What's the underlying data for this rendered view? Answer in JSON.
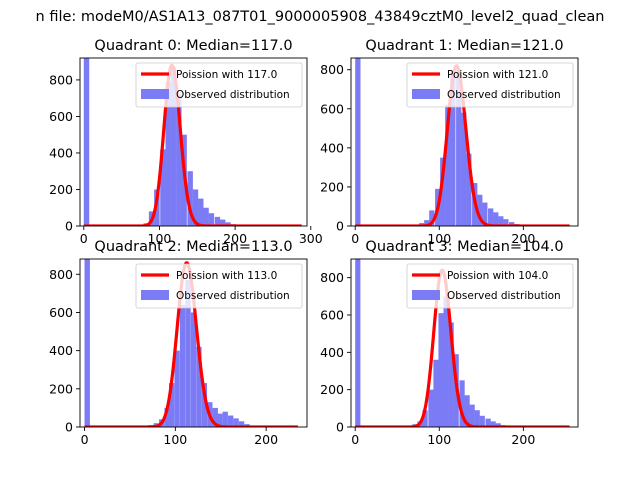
{
  "suptitle": "n file: modeM0/AS1A13_087T01_9000005908_43849cztM0_level2_quad_clean",
  "colors": {
    "bar": "#7b7bf5",
    "curve": "#ff0000",
    "axis": "#000000"
  },
  "chart_data": [
    {
      "type": "bar",
      "title": "Quadrant 0: Median=117.0",
      "xlim": [
        -5,
        295
      ],
      "ylim": [
        0,
        920
      ],
      "xticks": [
        0,
        100,
        200,
        300
      ],
      "yticks": [
        0,
        200,
        400,
        600,
        800
      ],
      "legend": {
        "placement": "top-right",
        "entries": [
          "Poission with 117.0",
          "Observed distribution"
        ]
      },
      "series": [
        {
          "name": "Observed distribution",
          "kind": "histogram",
          "bin_width": 7.2,
          "bins": [
            [
              0,
              920
            ],
            [
              72,
              5
            ],
            [
              79,
              15
            ],
            [
              86,
              80
            ],
            [
              93,
              200
            ],
            [
              101,
              420
            ],
            [
              108,
              790
            ],
            [
              115,
              870
            ],
            [
              122,
              720
            ],
            [
              129,
              500
            ],
            [
              137,
              300
            ],
            [
              144,
              200
            ],
            [
              151,
              150
            ],
            [
              158,
              100
            ],
            [
              165,
              70
            ],
            [
              173,
              50
            ],
            [
              180,
              35
            ],
            [
              187,
              20
            ],
            [
              194,
              10
            ]
          ]
        },
        {
          "name": "Poission with 117.0",
          "kind": "poisson",
          "lambda": 117.0,
          "peak": 880,
          "x": [
            0,
            288
          ]
        }
      ]
    },
    {
      "type": "bar",
      "title": "Quadrant 1: Median=121.0",
      "xlim": [
        -5,
        265
      ],
      "ylim": [
        0,
        860
      ],
      "xticks": [
        0,
        100,
        200
      ],
      "yticks": [
        0,
        200,
        400,
        600,
        800
      ],
      "legend": {
        "placement": "top-right",
        "entries": [
          "Poission with 121.0",
          "Observed distribution"
        ]
      },
      "series": [
        {
          "name": "Observed distribution",
          "kind": "histogram",
          "bin_width": 6.3,
          "bins": [
            [
              0,
              860
            ],
            [
              69,
              5
            ],
            [
              76,
              15
            ],
            [
              82,
              30
            ],
            [
              88,
              80
            ],
            [
              95,
              190
            ],
            [
              101,
              350
            ],
            [
              107,
              620
            ],
            [
              113,
              780
            ],
            [
              120,
              800
            ],
            [
              126,
              580
            ],
            [
              132,
              370
            ],
            [
              139,
              220
            ],
            [
              145,
              160
            ],
            [
              151,
              120
            ],
            [
              158,
              90
            ],
            [
              164,
              70
            ],
            [
              170,
              50
            ],
            [
              176,
              35
            ],
            [
              183,
              20
            ],
            [
              189,
              10
            ]
          ]
        },
        {
          "name": "Poission with 121.0",
          "kind": "poisson",
          "lambda": 121.0,
          "peak": 820,
          "x": [
            0,
            255
          ]
        }
      ]
    },
    {
      "type": "bar",
      "title": "Quadrant 2: Median=113.0",
      "xlim": [
        -5,
        245
      ],
      "ylim": [
        0,
        880
      ],
      "xticks": [
        0,
        100,
        200
      ],
      "yticks": [
        0,
        200,
        400,
        600,
        800
      ],
      "legend": {
        "placement": "top-right",
        "entries": [
          "Poission with 113.0",
          "Observed distribution"
        ]
      },
      "series": [
        {
          "name": "Observed distribution",
          "kind": "histogram",
          "bin_width": 5.9,
          "bins": [
            [
              0,
              880
            ],
            [
              64,
              5
            ],
            [
              70,
              10
            ],
            [
              76,
              20
            ],
            [
              82,
              40
            ],
            [
              88,
              100
            ],
            [
              93,
              230
            ],
            [
              99,
              400
            ],
            [
              105,
              640
            ],
            [
              111,
              770
            ],
            [
              117,
              600
            ],
            [
              123,
              420
            ],
            [
              129,
              230
            ],
            [
              135,
              130
            ],
            [
              141,
              100
            ],
            [
              146,
              70
            ],
            [
              152,
              80
            ],
            [
              158,
              60
            ],
            [
              164,
              45
            ],
            [
              170,
              30
            ],
            [
              176,
              15
            ]
          ]
        },
        {
          "name": "Poission with 113.0",
          "kind": "poisson",
          "lambda": 113.0,
          "peak": 860,
          "x": [
            0,
            235
          ]
        }
      ]
    },
    {
      "type": "bar",
      "title": "Quadrant 3: Median=104.0",
      "xlim": [
        -5,
        265
      ],
      "ylim": [
        0,
        900
      ],
      "xticks": [
        0,
        100,
        200
      ],
      "yticks": [
        0,
        200,
        400,
        600,
        800
      ],
      "legend": {
        "placement": "top-right",
        "entries": [
          "Poission with 104.0",
          "Observed distribution"
        ]
      },
      "series": [
        {
          "name": "Observed distribution",
          "kind": "histogram",
          "bin_width": 6.2,
          "bins": [
            [
              0,
              900
            ],
            [
              62,
              5
            ],
            [
              68,
              15
            ],
            [
              74,
              30
            ],
            [
              80,
              90
            ],
            [
              87,
              200
            ],
            [
              93,
              360
            ],
            [
              99,
              610
            ],
            [
              105,
              700
            ],
            [
              111,
              560
            ],
            [
              117,
              390
            ],
            [
              124,
              250
            ],
            [
              130,
              170
            ],
            [
              136,
              120
            ],
            [
              142,
              90
            ],
            [
              148,
              60
            ],
            [
              155,
              45
            ],
            [
              161,
              30
            ],
            [
              167,
              20
            ],
            [
              173,
              10
            ]
          ]
        },
        {
          "name": "Poission with 104.0",
          "kind": "poisson",
          "lambda": 104.0,
          "peak": 840,
          "x": [
            0,
            255
          ]
        }
      ]
    }
  ]
}
